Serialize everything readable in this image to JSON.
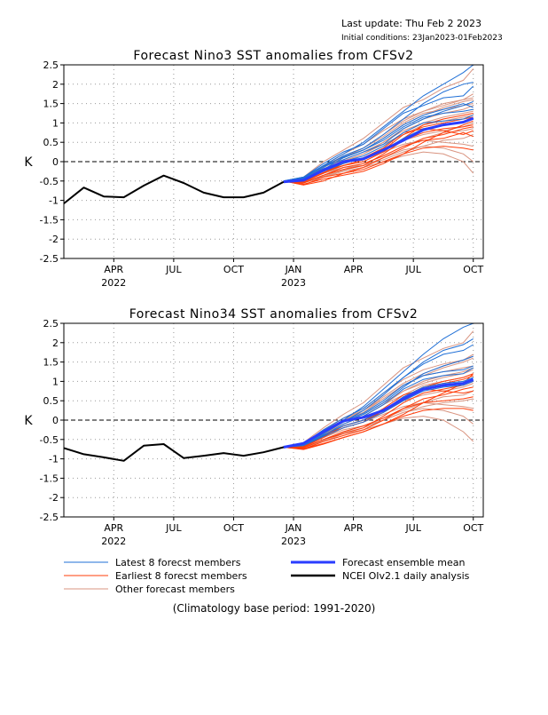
{
  "header": {
    "last_update": "Last update: Thu Feb 2 2023",
    "initial_conditions": "Initial conditions: 23Jan2023-01Feb2023"
  },
  "legend": {
    "latest": "Latest 8 forecst members",
    "earliest": "Earliest 8 forecst members",
    "other": "Other forecast members",
    "mean": "Forecast ensemble mean",
    "obs": "NCEI OIv2.1 daily analysis"
  },
  "colors": {
    "latest": "#1f6fd6",
    "earliest": "#ff3d0a",
    "other": "#d99480",
    "mean": "#2a3dff",
    "obs": "#000000",
    "grid": "#999999"
  },
  "footer": "(Climatology base period: 1991-2020)",
  "chart_data": [
    {
      "type": "line",
      "title": "Forecast Nino3 SST anomalies from CFSv2",
      "ylabel": "K",
      "ylim": [
        -2.5,
        2.5
      ],
      "yticks": [
        -2.5,
        -2,
        -1.5,
        -1,
        -0.5,
        0,
        0.5,
        1,
        1.5,
        2,
        2.5
      ],
      "ytick_labels": [
        "-2.5",
        "-2",
        "-1.5",
        "-1",
        "-0.5",
        "0",
        "0.5",
        "1",
        "1.5",
        "2",
        "2.5"
      ],
      "xlim_month_index": [
        0,
        21
      ],
      "xticks": [
        {
          "m": 2.5,
          "label": "APR",
          "year": "2022"
        },
        {
          "m": 5.5,
          "label": "JUL",
          "year": ""
        },
        {
          "m": 8.5,
          "label": "OCT",
          "year": ""
        },
        {
          "m": 11.5,
          "label": "JAN",
          "year": "2023"
        },
        {
          "m": 14.5,
          "label": "APR",
          "year": ""
        },
        {
          "m": 17.5,
          "label": "JUL",
          "year": ""
        },
        {
          "m": 20.5,
          "label": "OCT",
          "year": ""
        }
      ],
      "grid": true,
      "observed": {
        "name": "NCEI OIv2.1 daily analysis",
        "x": [
          0,
          1,
          2,
          3,
          4,
          5,
          6,
          7,
          8,
          9,
          10,
          11.0
        ],
        "y": [
          -1.08,
          -0.67,
          -0.9,
          -0.92,
          -0.62,
          -0.36,
          -0.55,
          -0.8,
          -0.92,
          -0.92,
          -0.8,
          -0.52
        ]
      },
      "ensemble_mean": {
        "name": "Forecast ensemble mean",
        "x": [
          11.0,
          12,
          13,
          14,
          15,
          16,
          17,
          18,
          19,
          20,
          20.5
        ],
        "y": [
          -0.52,
          -0.48,
          -0.22,
          0.0,
          0.07,
          0.3,
          0.55,
          0.82,
          0.95,
          1.02,
          1.12
        ]
      },
      "latest_members": [
        [
          -0.5,
          -0.4,
          -0.1,
          0.2,
          0.5,
          0.9,
          1.3,
          1.7,
          2.0,
          2.3,
          2.5
        ],
        [
          -0.5,
          -0.45,
          -0.15,
          0.15,
          0.35,
          0.7,
          1.1,
          1.5,
          1.8,
          2.0,
          2.05
        ],
        [
          -0.5,
          -0.4,
          -0.05,
          0.25,
          0.45,
          0.85,
          1.25,
          1.45,
          1.65,
          1.7,
          1.95
        ],
        [
          -0.5,
          -0.42,
          -0.12,
          0.05,
          0.25,
          0.45,
          0.85,
          1.1,
          1.3,
          1.45,
          1.55
        ],
        [
          -0.5,
          -0.45,
          -0.2,
          0.1,
          0.3,
          0.6,
          0.95,
          1.2,
          1.35,
          1.5,
          1.4
        ],
        [
          -0.5,
          -0.44,
          -0.18,
          0.0,
          0.15,
          0.4,
          0.75,
          1.0,
          1.05,
          1.1,
          1.2
        ],
        [
          -0.5,
          -0.46,
          -0.25,
          -0.05,
          0.1,
          0.3,
          0.6,
          0.85,
          0.95,
          1.0,
          1.1
        ],
        [
          -0.5,
          -0.43,
          -0.1,
          0.12,
          0.3,
          0.55,
          0.9,
          1.15,
          1.25,
          1.3,
          1.35
        ]
      ],
      "earliest_members": [
        [
          -0.5,
          -0.55,
          -0.35,
          -0.2,
          -0.1,
          0.2,
          0.55,
          0.75,
          0.85,
          0.9,
          0.95
        ],
        [
          -0.5,
          -0.6,
          -0.4,
          -0.3,
          -0.15,
          0.1,
          0.35,
          0.6,
          0.7,
          0.85,
          0.9
        ],
        [
          -0.5,
          -0.5,
          -0.25,
          -0.1,
          0.05,
          0.3,
          0.7,
          0.9,
          1.0,
          1.1,
          1.15
        ],
        [
          -0.5,
          -0.58,
          -0.45,
          -0.35,
          -0.25,
          -0.05,
          0.2,
          0.5,
          0.75,
          0.95,
          1.05
        ],
        [
          -0.5,
          -0.52,
          -0.3,
          -0.05,
          0.1,
          0.35,
          0.75,
          0.85,
          0.8,
          0.7,
          0.8
        ],
        [
          -0.5,
          -0.55,
          -0.35,
          -0.15,
          -0.05,
          0.15,
          0.4,
          0.55,
          0.6,
          0.75,
          0.65
        ],
        [
          -0.5,
          -0.6,
          -0.5,
          -0.3,
          -0.2,
          0.0,
          0.2,
          0.35,
          0.4,
          0.35,
          0.3
        ],
        [
          -0.5,
          -0.52,
          -0.28,
          -0.1,
          0.0,
          0.25,
          0.6,
          0.95,
          1.1,
          1.2,
          1.25
        ]
      ],
      "other_members": [
        [
          -0.5,
          -0.4,
          0.0,
          0.3,
          0.6,
          1.0,
          1.4,
          1.6,
          1.9,
          2.1,
          2.4
        ],
        [
          -0.5,
          -0.45,
          -0.1,
          0.2,
          0.45,
          0.8,
          1.1,
          1.3,
          1.5,
          1.6,
          1.75
        ],
        [
          -0.5,
          -0.5,
          -0.2,
          0.05,
          0.25,
          0.5,
          0.8,
          1.0,
          1.15,
          1.25,
          1.3
        ],
        [
          -0.5,
          -0.48,
          -0.25,
          -0.05,
          0.1,
          0.35,
          0.55,
          0.7,
          0.8,
          0.9,
          1.0
        ],
        [
          -0.5,
          -0.55,
          -0.4,
          -0.25,
          -0.15,
          0.0,
          0.15,
          0.25,
          0.2,
          0.0,
          -0.3
        ],
        [
          -0.5,
          -0.5,
          -0.3,
          -0.15,
          -0.1,
          0.05,
          0.25,
          0.4,
          0.55,
          0.6,
          0.7
        ],
        [
          -0.5,
          -0.42,
          -0.15,
          0.1,
          0.3,
          0.6,
          0.95,
          1.2,
          1.4,
          1.55,
          1.6
        ],
        [
          -0.5,
          -0.46,
          -0.2,
          0.0,
          0.2,
          0.45,
          0.7,
          0.95,
          1.05,
          1.15,
          1.2
        ],
        [
          -0.5,
          -0.52,
          -0.35,
          -0.2,
          -0.05,
          0.15,
          0.4,
          0.6,
          0.75,
          0.8,
          0.85
        ],
        [
          -0.5,
          -0.44,
          -0.12,
          0.15,
          0.35,
          0.7,
          1.05,
          1.3,
          1.45,
          1.6,
          1.65
        ],
        [
          -0.5,
          -0.5,
          -0.3,
          -0.1,
          0.05,
          0.25,
          0.45,
          0.55,
          0.5,
          0.45,
          0.4
        ],
        [
          -0.5,
          -0.47,
          -0.22,
          0.02,
          0.2,
          0.5,
          0.85,
          1.1,
          1.25,
          1.35,
          1.45
        ],
        [
          -0.5,
          -0.53,
          -0.38,
          -0.22,
          -0.1,
          0.1,
          0.3,
          0.4,
          0.35,
          0.2,
          0.0
        ],
        [
          -0.5,
          -0.45,
          -0.15,
          0.1,
          0.35,
          0.65,
          1.0,
          1.25,
          1.35,
          1.45,
          1.5
        ]
      ]
    },
    {
      "type": "line",
      "title": "Forecast Nino34 SST anomalies from CFSv2",
      "ylabel": "K",
      "ylim": [
        -2.5,
        2.5
      ],
      "yticks": [
        -2.5,
        -2,
        -1.5,
        -1,
        -0.5,
        0,
        0.5,
        1,
        1.5,
        2,
        2.5
      ],
      "ytick_labels": [
        "-2.5",
        "-2",
        "-1.5",
        "-1",
        "-0.5",
        "0",
        "0.5",
        "1",
        "1.5",
        "2",
        "2.5"
      ],
      "xlim_month_index": [
        0,
        21
      ],
      "xticks": [
        {
          "m": 2.5,
          "label": "APR",
          "year": "2022"
        },
        {
          "m": 5.5,
          "label": "JUL",
          "year": ""
        },
        {
          "m": 8.5,
          "label": "OCT",
          "year": ""
        },
        {
          "m": 11.5,
          "label": "JAN",
          "year": "2023"
        },
        {
          "m": 14.5,
          "label": "APR",
          "year": ""
        },
        {
          "m": 17.5,
          "label": "JUL",
          "year": ""
        },
        {
          "m": 20.5,
          "label": "OCT",
          "year": ""
        }
      ],
      "grid": true,
      "observed": {
        "name": "NCEI OIv2.1 daily analysis",
        "x": [
          0,
          1,
          2,
          3,
          4,
          5,
          6,
          7,
          8,
          9,
          10,
          11.0
        ],
        "y": [
          -0.72,
          -0.88,
          -0.96,
          -1.05,
          -0.66,
          -0.62,
          -0.98,
          -0.92,
          -0.85,
          -0.92,
          -0.83,
          -0.7
        ]
      },
      "ensemble_mean": {
        "name": "Forecast ensemble mean",
        "x": [
          11.0,
          12,
          13,
          14,
          15,
          16,
          17,
          18,
          19,
          20,
          20.5
        ],
        "y": [
          -0.7,
          -0.6,
          -0.3,
          -0.02,
          0.07,
          0.25,
          0.55,
          0.8,
          0.9,
          0.95,
          1.05
        ]
      },
      "latest_members": [
        [
          -0.7,
          -0.6,
          -0.3,
          0.0,
          0.35,
          0.8,
          1.25,
          1.7,
          2.1,
          2.4,
          2.5
        ],
        [
          -0.7,
          -0.62,
          -0.35,
          -0.05,
          0.25,
          0.65,
          1.1,
          1.5,
          1.8,
          1.95,
          2.1
        ],
        [
          -0.7,
          -0.6,
          -0.25,
          0.05,
          0.3,
          0.7,
          1.1,
          1.45,
          1.7,
          1.8,
          1.95
        ],
        [
          -0.7,
          -0.63,
          -0.32,
          -0.05,
          0.15,
          0.45,
          0.85,
          1.2,
          1.4,
          1.55,
          1.65
        ],
        [
          -0.7,
          -0.65,
          -0.4,
          -0.1,
          0.1,
          0.4,
          0.8,
          1.05,
          1.15,
          1.2,
          1.35
        ],
        [
          -0.7,
          -0.64,
          -0.38,
          -0.15,
          0.0,
          0.25,
          0.6,
          0.85,
          0.95,
          1.0,
          1.1
        ],
        [
          -0.7,
          -0.66,
          -0.42,
          -0.2,
          -0.05,
          0.2,
          0.5,
          0.75,
          0.85,
          0.9,
          1.0
        ],
        [
          -0.7,
          -0.62,
          -0.3,
          -0.02,
          0.18,
          0.5,
          0.9,
          1.15,
          1.25,
          1.3,
          1.4
        ]
      ],
      "earliest_members": [
        [
          -0.7,
          -0.72,
          -0.5,
          -0.35,
          -0.2,
          0.1,
          0.45,
          0.7,
          0.8,
          0.9,
          1.0
        ],
        [
          -0.7,
          -0.75,
          -0.55,
          -0.4,
          -0.25,
          0.0,
          0.3,
          0.55,
          0.65,
          0.8,
          0.85
        ],
        [
          -0.7,
          -0.68,
          -0.42,
          -0.2,
          -0.05,
          0.25,
          0.6,
          0.85,
          0.95,
          1.05,
          1.15
        ],
        [
          -0.7,
          -0.74,
          -0.6,
          -0.45,
          -0.3,
          -0.1,
          0.15,
          0.45,
          0.7,
          0.95,
          1.2
        ],
        [
          -0.7,
          -0.7,
          -0.45,
          -0.15,
          0.0,
          0.3,
          0.65,
          0.8,
          0.75,
          0.7,
          0.75
        ],
        [
          -0.7,
          -0.72,
          -0.5,
          -0.3,
          -0.15,
          0.05,
          0.3,
          0.45,
          0.5,
          0.55,
          0.6
        ],
        [
          -0.7,
          -0.76,
          -0.62,
          -0.45,
          -0.3,
          -0.1,
          0.1,
          0.25,
          0.3,
          0.3,
          0.25
        ],
        [
          -0.7,
          -0.69,
          -0.4,
          -0.15,
          0.0,
          0.2,
          0.5,
          0.85,
          1.0,
          1.1,
          1.2
        ]
      ],
      "other_members": [
        [
          -0.7,
          -0.58,
          -0.2,
          0.15,
          0.45,
          0.9,
          1.35,
          1.6,
          1.85,
          2.0,
          2.3
        ],
        [
          -0.7,
          -0.6,
          -0.28,
          0.05,
          0.3,
          0.7,
          1.05,
          1.3,
          1.45,
          1.55,
          1.7
        ],
        [
          -0.7,
          -0.65,
          -0.35,
          -0.05,
          0.15,
          0.45,
          0.75,
          0.95,
          1.1,
          1.2,
          1.3
        ],
        [
          -0.7,
          -0.66,
          -0.4,
          -0.15,
          0.0,
          0.25,
          0.5,
          0.65,
          0.75,
          0.85,
          0.95
        ],
        [
          -0.7,
          -0.72,
          -0.55,
          -0.35,
          -0.25,
          -0.1,
          0.05,
          0.1,
          0.0,
          -0.3,
          -0.55
        ],
        [
          -0.7,
          -0.68,
          -0.45,
          -0.25,
          -0.15,
          0.0,
          0.2,
          0.35,
          0.45,
          0.5,
          0.55
        ],
        [
          -0.7,
          -0.6,
          -0.3,
          0.0,
          0.2,
          0.55,
          0.9,
          1.15,
          1.35,
          1.5,
          1.6
        ],
        [
          -0.7,
          -0.64,
          -0.35,
          -0.1,
          0.1,
          0.4,
          0.65,
          0.9,
          1.0,
          1.1,
          1.2
        ],
        [
          -0.7,
          -0.7,
          -0.5,
          -0.3,
          -0.15,
          0.05,
          0.25,
          0.45,
          0.6,
          0.65,
          0.75
        ],
        [
          -0.7,
          -0.61,
          -0.25,
          0.05,
          0.25,
          0.6,
          0.95,
          1.2,
          1.4,
          1.55,
          1.65
        ],
        [
          -0.7,
          -0.69,
          -0.45,
          -0.2,
          -0.05,
          0.15,
          0.35,
          0.45,
          0.4,
          0.35,
          0.3
        ],
        [
          -0.7,
          -0.65,
          -0.38,
          -0.1,
          0.1,
          0.4,
          0.75,
          1.0,
          1.15,
          1.25,
          1.35
        ],
        [
          -0.7,
          -0.71,
          -0.52,
          -0.32,
          -0.2,
          0.0,
          0.2,
          0.3,
          0.25,
          0.1,
          -0.1
        ],
        [
          -0.7,
          -0.62,
          -0.3,
          0.0,
          0.25,
          0.55,
          0.9,
          1.15,
          1.25,
          1.35,
          1.4
        ]
      ]
    }
  ]
}
